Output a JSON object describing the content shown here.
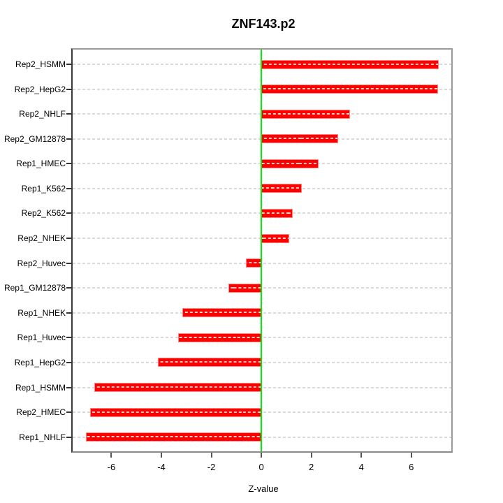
{
  "chart_data": {
    "type": "bar",
    "orientation": "horizontal",
    "title": "ZNF143.p2",
    "xlabel": "Z-value",
    "ylabel": "",
    "categories": [
      "Rep2_HSMM",
      "Rep2_HepG2",
      "Rep2_NHLF",
      "Rep2_GM12878",
      "Rep1_HMEC",
      "Rep1_K562",
      "Rep2_K562",
      "Rep2_NHEK",
      "Rep2_Huvec",
      "Rep1_GM12878",
      "Rep1_NHEK",
      "Rep1_Huvec",
      "Rep1_HepG2",
      "Rep1_HSMM",
      "Rep2_HMEC",
      "Rep1_NHLF"
    ],
    "values": [
      7.07,
      7.03,
      3.52,
      3.04,
      2.25,
      1.59,
      1.23,
      1.1,
      -0.6,
      -1.3,
      -3.13,
      -3.29,
      -4.1,
      -6.65,
      -6.82,
      -6.98
    ],
    "x_ticks": [
      -6,
      -4,
      -2,
      0,
      2,
      4,
      6
    ],
    "x_tick_labels": [
      "-6",
      "-4",
      "-2",
      "0",
      "2",
      "4",
      "6"
    ],
    "xlim": [
      -7.55,
      7.6
    ],
    "grid": "dashed horizontal line per category, drawn across full panel",
    "legend": "none",
    "zero_reference_line": 0,
    "colors": {
      "bar": "#ff0000",
      "zero_line": "#00ee00",
      "grid_line": "#d9d9d9",
      "box_border": "#9a9a9a",
      "text": "#000000"
    }
  }
}
